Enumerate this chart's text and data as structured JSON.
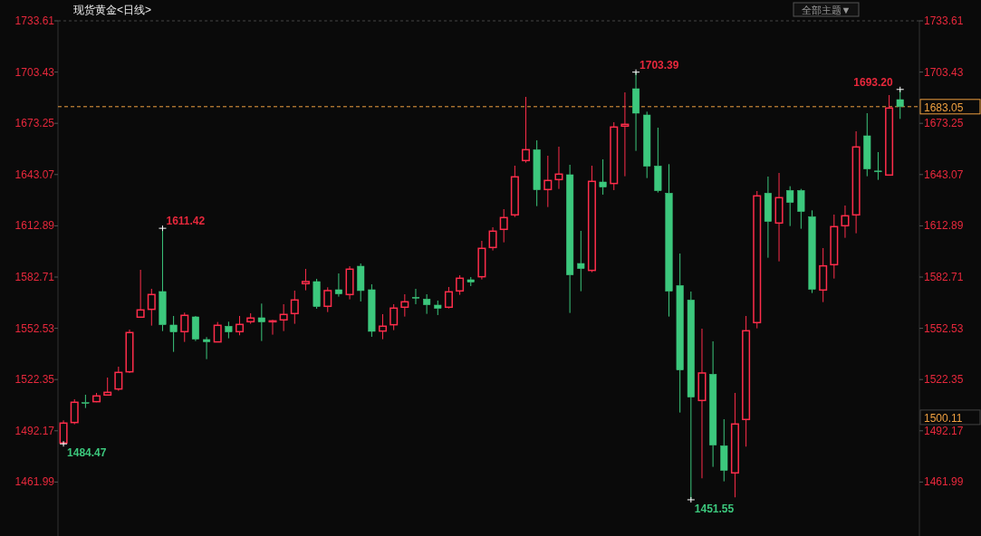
{
  "chart_data": {
    "type": "candlestick",
    "title": "现货黄金<日线>",
    "categories": [
      null,
      null,
      null,
      null,
      null,
      null,
      null,
      null,
      null,
      null,
      null,
      null,
      null,
      null,
      null,
      null,
      null,
      null,
      null,
      null,
      null,
      null,
      null,
      null,
      null,
      null,
      null,
      null,
      null,
      null,
      null,
      null,
      null,
      null,
      null,
      null,
      null,
      null,
      null,
      null,
      null,
      null,
      null,
      null,
      null,
      null,
      null,
      null,
      null,
      null,
      null,
      null,
      null,
      null,
      null,
      null,
      null,
      null,
      null,
      null,
      null,
      null,
      null,
      null,
      null,
      null,
      null,
      null,
      null,
      null,
      null,
      null,
      null,
      null,
      null,
      null,
      null
    ],
    "ohlc": [
      [
        1485.0,
        1498.3,
        1484.47,
        1496.7
      ],
      [
        1497.05,
        1510.74,
        1495.99,
        1508.96
      ],
      [
        1508.8,
        1513.4,
        1505.58,
        1508.4
      ],
      [
        1509.32,
        1514.47,
        1509.0,
        1512.69
      ],
      [
        1513.23,
        1523.53,
        1513.0,
        1514.82
      ],
      [
        1516.78,
        1529.93,
        1515.71,
        1526.55
      ],
      [
        1526.91,
        1551.79,
        1526.2,
        1550.02
      ],
      [
        1559.08,
        1586.98,
        1558.9,
        1563.34
      ],
      [
        1563.7,
        1575.79,
        1554.1,
        1572.41
      ],
      [
        1574.19,
        1611.42,
        1550.9,
        1554.64
      ],
      [
        1554.46,
        1559.79,
        1538.64,
        1550.37
      ],
      [
        1550.55,
        1561.75,
        1544.51,
        1560.15
      ],
      [
        1559.26,
        1559.79,
        1545.04,
        1546.11
      ],
      [
        1545.93,
        1547.35,
        1534.37,
        1544.51
      ],
      [
        1544.51,
        1556.24,
        1544.3,
        1554.28
      ],
      [
        1553.75,
        1556.41,
        1546.64,
        1550.37
      ],
      [
        1550.55,
        1559.79,
        1548.42,
        1554.81
      ],
      [
        1556.41,
        1561.39,
        1555.17,
        1558.55
      ],
      [
        1558.73,
        1567.08,
        1545.04,
        1556.24
      ],
      [
        1556.6,
        1557.48,
        1548.77,
        1556.9
      ],
      [
        1557.48,
        1566.72,
        1550.9,
        1560.68
      ],
      [
        1561.21,
        1574.72,
        1555.17,
        1569.21
      ],
      [
        1578.81,
        1587.52,
        1574.9,
        1580.05
      ],
      [
        1580.05,
        1581.65,
        1564.06,
        1565.3
      ],
      [
        1565.48,
        1576.67,
        1562.1,
        1574.72
      ],
      [
        1575.25,
        1584.85,
        1571.17,
        1572.77
      ],
      [
        1572.41,
        1589.12,
        1569.57,
        1587.34
      ],
      [
        1589.11,
        1590.71,
        1568.32,
        1574.72
      ],
      [
        1575.25,
        1578.45,
        1547.52,
        1550.72
      ],
      [
        1550.9,
        1560.85,
        1546.1,
        1553.75
      ],
      [
        1554.63,
        1566.72,
        1551.43,
        1564.41
      ],
      [
        1564.94,
        1572.58,
        1559.43,
        1568.14
      ],
      [
        1570.8,
        1575.78,
        1566.72,
        1570.6
      ],
      [
        1569.74,
        1572.58,
        1561.03,
        1566.36
      ],
      [
        1566.19,
        1568.85,
        1560.32,
        1564.23
      ],
      [
        1564.94,
        1576.85,
        1564.23,
        1574.01
      ],
      [
        1574.54,
        1583.78,
        1572.23,
        1582.0
      ],
      [
        1581.12,
        1582.72,
        1577.38,
        1579.69
      ],
      [
        1582.89,
        1604.04,
        1581.29,
        1599.6
      ],
      [
        1600.13,
        1612.04,
        1598.36,
        1609.73
      ],
      [
        1610.8,
        1622.7,
        1603.15,
        1617.73
      ],
      [
        1619.33,
        1648.3,
        1618.08,
        1641.72
      ],
      [
        1651.32,
        1688.82,
        1650.08,
        1657.72
      ],
      [
        1657.72,
        1663.23,
        1624.48,
        1634.08
      ],
      [
        1634.26,
        1654.16,
        1623.95,
        1639.59
      ],
      [
        1640.12,
        1659.49,
        1634.61,
        1643.32
      ],
      [
        1642.97,
        1648.83,
        1561.57,
        1583.96
      ],
      [
        1590.71,
        1609.91,
        1574.36,
        1587.69
      ],
      [
        1586.63,
        1648.3,
        1585.56,
        1639.06
      ],
      [
        1638.7,
        1652.03,
        1631.24,
        1635.68
      ],
      [
        1637.81,
        1673.89,
        1633.9,
        1671.05
      ],
      [
        1671.58,
        1691.49,
        1642.08,
        1672.65
      ],
      [
        1693.62,
        1703.39,
        1657.01,
        1679.22
      ],
      [
        1678.16,
        1680.11,
        1641.01,
        1647.94
      ],
      [
        1648.12,
        1670.69,
        1632.48,
        1633.55
      ],
      [
        1632.12,
        1649.19,
        1559.43,
        1574.36
      ],
      [
        1577.74,
        1596.58,
        1502.91,
        1527.97
      ],
      [
        1569.21,
        1574.18,
        1451.55,
        1511.98
      ],
      [
        1510.02,
        1552.32,
        1464.17,
        1526.2
      ],
      [
        1525.49,
        1544.86,
        1470.92,
        1483.72
      ],
      [
        1483.36,
        1499.0,
        1462.39,
        1468.79
      ],
      [
        1467.37,
        1514.47,
        1452.97,
        1496.16
      ],
      [
        1498.83,
        1559.79,
        1482.83,
        1551.08
      ],
      [
        1555.88,
        1633.37,
        1552.5,
        1630.52
      ],
      [
        1632.12,
        1641.9,
        1594.09,
        1615.42
      ],
      [
        1614.53,
        1644.03,
        1591.96,
        1629.46
      ],
      [
        1633.72,
        1636.21,
        1612.75,
        1626.61
      ],
      [
        1633.72,
        1634.61,
        1611.15,
        1621.28
      ],
      [
        1618.26,
        1621.99,
        1573.3,
        1575.43
      ],
      [
        1575.07,
        1599.78,
        1567.96,
        1589.29
      ],
      [
        1590.0,
        1619.51,
        1581.83,
        1612.4
      ],
      [
        1612.93,
        1624.84,
        1605.82,
        1618.79
      ],
      [
        1619.33,
        1668.56,
        1608.49,
        1659.32
      ],
      [
        1665.89,
        1679.22,
        1642.08,
        1646.34
      ],
      [
        1645.2,
        1656.3,
        1639.94,
        1645.0
      ],
      [
        1642.79,
        1689.89,
        1642.6,
        1682.24
      ],
      [
        1687.22,
        1693.2,
        1675.85,
        1683.05
      ]
    ],
    "colors": [
      "#ff2d4b",
      "#ff2d4b",
      "#3cc87d",
      "#ff2d4b",
      "#ff2d4b",
      "#ff2d4b",
      "#ff2d4b",
      "#ff2d4b",
      "#ff2d4b",
      "#3cc87d",
      "#3cc87d",
      "#ff2d4b",
      "#3cc87d",
      "#3cc87d",
      "#ff2d4b",
      "#3cc87d",
      "#ff2d4b",
      "#ff2d4b",
      "#3cc87d",
      "#ff2d4b",
      "#ff2d4b",
      "#ff2d4b",
      "#ff2d4b",
      "#3cc87d",
      "#ff2d4b",
      "#3cc87d",
      "#ff2d4b",
      "#3cc87d",
      "#3cc87d",
      "#ff2d4b",
      "#ff2d4b",
      "#ff2d4b",
      "#3cc87d",
      "#3cc87d",
      "#3cc87d",
      "#ff2d4b",
      "#ff2d4b",
      "#3cc87d",
      "#ff2d4b",
      "#ff2d4b",
      "#ff2d4b",
      "#ff2d4b",
      "#ff2d4b",
      "#3cc87d",
      "#ff2d4b",
      "#ff2d4b",
      "#3cc87d",
      "#3cc87d",
      "#ff2d4b",
      "#3cc87d",
      "#ff2d4b",
      "#ff2d4b",
      "#3cc87d",
      "#3cc87d",
      "#3cc87d",
      "#3cc87d",
      "#3cc87d",
      "#3cc87d",
      "#ff2d4b",
      "#3cc87d",
      "#3cc87d",
      "#ff2d4b",
      "#ff2d4b",
      "#ff2d4b",
      "#3cc87d",
      "#ff2d4b",
      "#3cc87d",
      "#3cc87d",
      "#3cc87d",
      "#ff2d4b",
      "#ff2d4b",
      "#ff2d4b",
      "#ff2d4b",
      "#3cc87d",
      "#3cc87d",
      "#ff2d4b",
      "#3cc87d"
    ],
    "ylim": [
      1430.2,
      1733.61
    ],
    "yticks": [
      1461.99,
      1492.17,
      1522.35,
      1552.53,
      1582.71,
      1612.89,
      1643.07,
      1673.25,
      1703.43,
      1733.61
    ],
    "y2lim": [
      1430.2,
      1733.61
    ],
    "y2ticks": [
      1461.99,
      1492.17,
      1522.35,
      1552.53,
      1582.71,
      1612.89,
      1643.07,
      1673.25,
      1703.43,
      1733.61
    ],
    "tick_labels": "y",
    "ref_lines": [
      {
        "axis": "y2",
        "value": 1683.05,
        "label": "1683.05",
        "color": "#f0a040",
        "line_style": "dashed"
      }
    ],
    "annotations": [
      "1611.42",
      "1703.39",
      "1693.20",
      "1484.47",
      "1451.55",
      "1500.11",
      "全部主题▼"
    ]
  }
}
